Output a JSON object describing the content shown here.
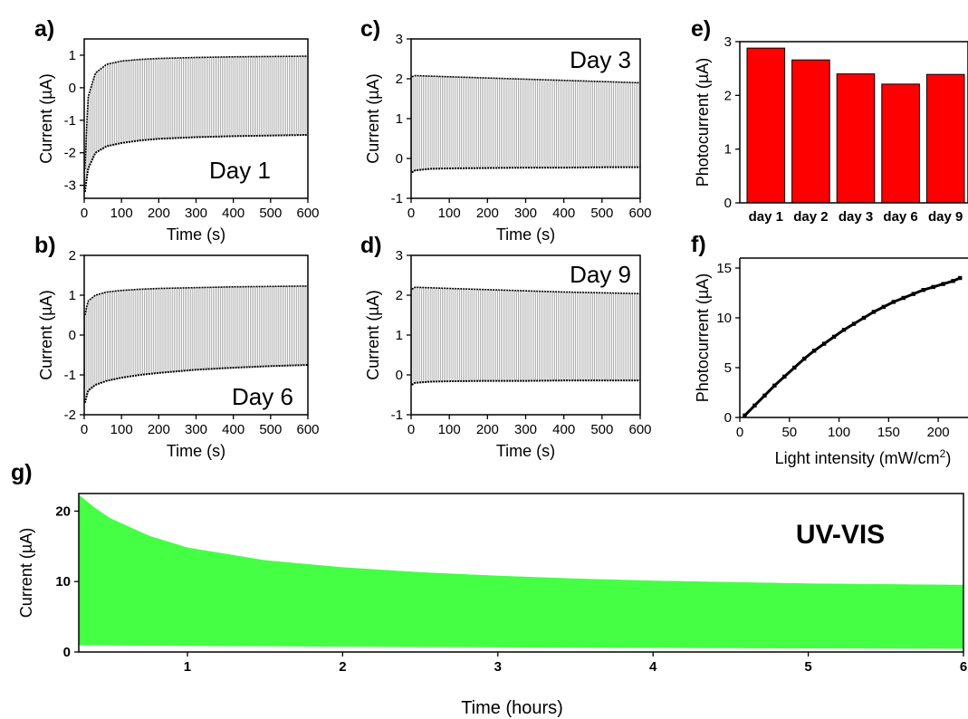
{
  "colors": {
    "trace": "#000000",
    "bar_fill": "#ff0000",
    "uvvis_fill": "#44ff44"
  },
  "chart_data": [
    {
      "id": "a",
      "panel_label": "a)",
      "type": "line",
      "annotation": "Day 1",
      "xlabel": "Time (s)",
      "ylabel": "Current (µA)",
      "xlim": [
        0,
        600
      ],
      "ylim": [
        -3.4,
        1.5
      ],
      "xticks": [
        0,
        100,
        200,
        300,
        400,
        500,
        600
      ],
      "yticks": [
        -3,
        -2,
        -1,
        0,
        1
      ],
      "series": [
        {
          "role": "on",
          "x": [
            2,
            10,
            30,
            60,
            100,
            150,
            200,
            300,
            400,
            500,
            600
          ],
          "y": [
            -2.5,
            -0.3,
            0.45,
            0.72,
            0.82,
            0.87,
            0.9,
            0.93,
            0.95,
            0.96,
            0.97
          ]
        },
        {
          "role": "off",
          "x": [
            2,
            10,
            30,
            60,
            100,
            150,
            200,
            300,
            400,
            500,
            600
          ],
          "y": [
            -3.2,
            -2.5,
            -2.0,
            -1.8,
            -1.7,
            -1.62,
            -1.57,
            -1.52,
            -1.49,
            -1.47,
            -1.45
          ]
        }
      ]
    },
    {
      "id": "b",
      "panel_label": "b)",
      "type": "line",
      "annotation": "Day 6",
      "xlabel": "Time (s)",
      "ylabel": "Current (µA)",
      "xlim": [
        0,
        600
      ],
      "ylim": [
        -2,
        2
      ],
      "xticks": [
        0,
        100,
        200,
        300,
        400,
        500,
        600
      ],
      "yticks": [
        -2,
        -1,
        0,
        1,
        2
      ],
      "series": [
        {
          "role": "on",
          "x": [
            2,
            10,
            30,
            60,
            100,
            150,
            200,
            300,
            400,
            500,
            600
          ],
          "y": [
            0.5,
            0.85,
            1.0,
            1.08,
            1.12,
            1.15,
            1.17,
            1.19,
            1.21,
            1.22,
            1.23
          ]
        },
        {
          "role": "off",
          "x": [
            2,
            10,
            30,
            60,
            100,
            150,
            200,
            300,
            400,
            500,
            600
          ],
          "y": [
            -1.7,
            -1.4,
            -1.25,
            -1.15,
            -1.07,
            -1.0,
            -0.95,
            -0.87,
            -0.82,
            -0.78,
            -0.75
          ]
        }
      ]
    },
    {
      "id": "c",
      "panel_label": "c)",
      "type": "line",
      "annotation": "Day 3",
      "xlabel": "Time (s)",
      "ylabel": "Current (µA)",
      "xlim": [
        0,
        600
      ],
      "ylim": [
        -1,
        3
      ],
      "xticks": [
        0,
        100,
        200,
        300,
        400,
        500,
        600
      ],
      "yticks": [
        -1,
        0,
        1,
        2,
        3
      ],
      "series": [
        {
          "role": "on",
          "x": [
            2,
            10,
            100,
            200,
            300,
            400,
            500,
            600
          ],
          "y": [
            2.05,
            2.08,
            2.05,
            2.02,
            1.99,
            1.96,
            1.93,
            1.9
          ]
        },
        {
          "role": "off",
          "x": [
            2,
            10,
            50,
            100,
            200,
            300,
            400,
            500,
            600
          ],
          "y": [
            -0.35,
            -0.3,
            -0.26,
            -0.25,
            -0.24,
            -0.23,
            -0.23,
            -0.22,
            -0.22
          ]
        }
      ]
    },
    {
      "id": "d",
      "panel_label": "d)",
      "type": "line",
      "annotation": "Day 9",
      "xlabel": "Time (s)",
      "ylabel": "Current (µA)",
      "xlim": [
        0,
        600
      ],
      "ylim": [
        -1,
        3
      ],
      "xticks": [
        0,
        100,
        200,
        300,
        400,
        500,
        600
      ],
      "yticks": [
        -1,
        0,
        1,
        2,
        3
      ],
      "series": [
        {
          "role": "on",
          "x": [
            2,
            10,
            100,
            200,
            300,
            400,
            500,
            600
          ],
          "y": [
            2.15,
            2.2,
            2.17,
            2.14,
            2.11,
            2.08,
            2.06,
            2.04
          ]
        },
        {
          "role": "off",
          "x": [
            2,
            10,
            50,
            100,
            200,
            300,
            400,
            500,
            600
          ],
          "y": [
            -0.25,
            -0.2,
            -0.17,
            -0.16,
            -0.15,
            -0.15,
            -0.14,
            -0.14,
            -0.14
          ]
        }
      ]
    },
    {
      "id": "e",
      "panel_label": "e)",
      "type": "bar",
      "ylabel": "Photocurrent (µA)",
      "categories": [
        "day 1",
        "day 2",
        "day 3",
        "day 6",
        "day 9"
      ],
      "values": [
        2.88,
        2.66,
        2.4,
        2.21,
        2.39
      ],
      "ylim": [
        0,
        3
      ],
      "yticks": [
        0,
        1,
        2,
        3
      ]
    },
    {
      "id": "f",
      "panel_label": "f)",
      "type": "scatter",
      "xlabel": "Light intensity (mW/cm",
      "xlabel_sup": "2",
      "xlabel_end": ")",
      "ylabel": "Photocurrent (µA)",
      "xlim": [
        0,
        230
      ],
      "ylim": [
        0,
        16
      ],
      "xticks": [
        0,
        50,
        100,
        150,
        200
      ],
      "yticks": [
        0,
        5,
        10,
        15
      ],
      "points": {
        "x": [
          5,
          15,
          25,
          35,
          45,
          55,
          65,
          75,
          85,
          95,
          105,
          115,
          125,
          135,
          145,
          155,
          165,
          175,
          185,
          195,
          205,
          215,
          222
        ],
        "y": [
          0.2,
          1.2,
          2.2,
          3.2,
          4.1,
          5.0,
          5.9,
          6.7,
          7.4,
          8.1,
          8.8,
          9.4,
          10.0,
          10.6,
          11.1,
          11.6,
          12.0,
          12.4,
          12.8,
          13.1,
          13.4,
          13.7,
          14.0
        ]
      }
    },
    {
      "id": "g",
      "panel_label": "g)",
      "type": "area",
      "annotation": "UV-VIS",
      "xlabel": "Time (hours)",
      "ylabel": "Current (µA)",
      "xlim": [
        0.3,
        6.0
      ],
      "ylim": [
        0,
        22.5
      ],
      "xticks": [
        1,
        2,
        3,
        4,
        5,
        6
      ],
      "yticks": [
        0,
        10,
        20
      ],
      "series": [
        {
          "role": "on",
          "x": [
            0.3,
            0.4,
            0.5,
            0.75,
            1.0,
            1.5,
            2.0,
            2.5,
            3.0,
            3.5,
            4.0,
            4.5,
            5.0,
            5.5,
            6.0
          ],
          "y": [
            22.3,
            20.5,
            19.0,
            16.5,
            14.8,
            13.0,
            12.0,
            11.3,
            10.8,
            10.4,
            10.1,
            9.9,
            9.7,
            9.6,
            9.5
          ]
        },
        {
          "role": "off",
          "x": [
            0.3,
            1.0,
            2.0,
            3.0,
            4.0,
            5.0,
            6.0
          ],
          "y": [
            1.0,
            0.9,
            0.8,
            0.7,
            0.6,
            0.55,
            0.5
          ]
        }
      ]
    }
  ]
}
